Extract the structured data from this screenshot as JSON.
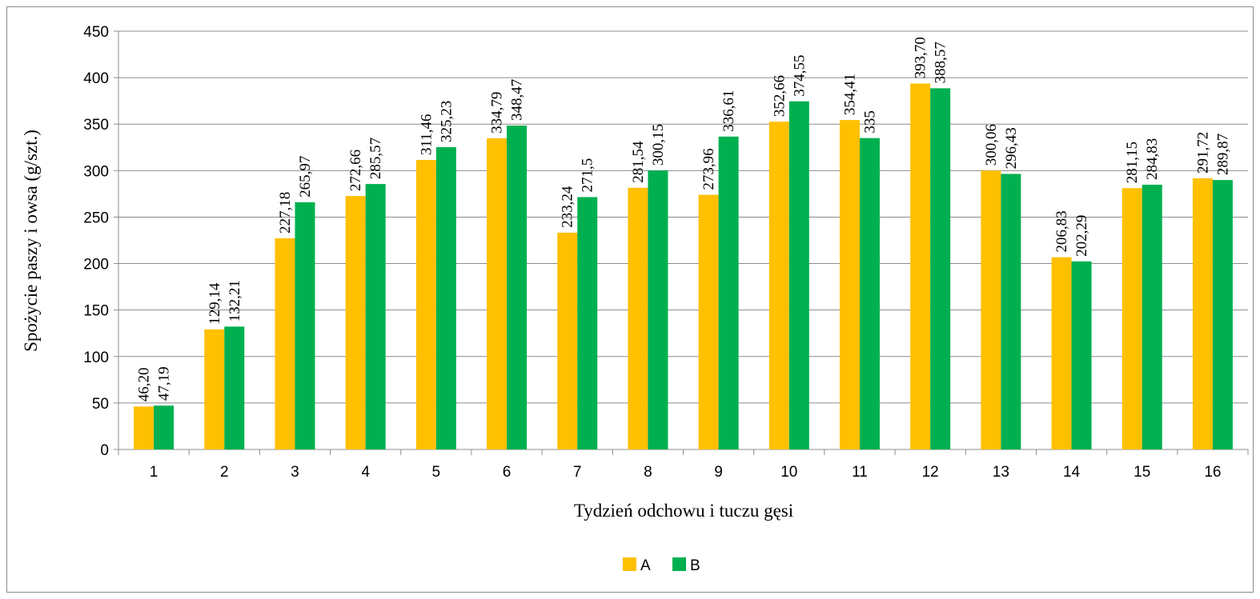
{
  "chart_data": {
    "type": "bar",
    "xlabel": "Tydzień odchowu i tuczu gęsi",
    "ylabel": "Spożycie paszy i owsa (g/szt.)",
    "ylim": [
      0,
      450
    ],
    "yticks": [
      0,
      50,
      100,
      150,
      200,
      250,
      300,
      350,
      400,
      450
    ],
    "grid": true,
    "legend_position": "bottom",
    "categories": [
      "1",
      "2",
      "3",
      "4",
      "5",
      "6",
      "7",
      "8",
      "9",
      "10",
      "11",
      "12",
      "13",
      "14",
      "15",
      "16"
    ],
    "series": [
      {
        "name": "A",
        "color": "#FFC000",
        "values": [
          46.2,
          129.14,
          227.18,
          272.66,
          311.46,
          334.79,
          233.24,
          281.54,
          273.96,
          352.66,
          354.41,
          393.7,
          300.06,
          206.83,
          281.15,
          291.72
        ],
        "labels": [
          "46,20",
          "129,14",
          "227,18",
          "272,66",
          "311,46",
          "334,79",
          "233,24",
          "281,54",
          "273,96",
          "352,66",
          "354,41",
          "393,70",
          "300,06",
          "206,83",
          "281,15",
          "291,72"
        ]
      },
      {
        "name": "B",
        "color": "#00B050",
        "values": [
          47.19,
          132.21,
          265.97,
          285.57,
          325.23,
          348.47,
          271.5,
          300.15,
          336.61,
          374.55,
          335,
          388.57,
          296.43,
          202.29,
          284.83,
          289.87
        ],
        "labels": [
          "47,19",
          "132,21",
          "265,97",
          "285,57",
          "325,23",
          "348,47",
          "271,5",
          "300,15",
          "336,61",
          "374,55",
          "335",
          "388,57",
          "296,43",
          "202,29",
          "284,83",
          "289,87"
        ]
      }
    ]
  }
}
